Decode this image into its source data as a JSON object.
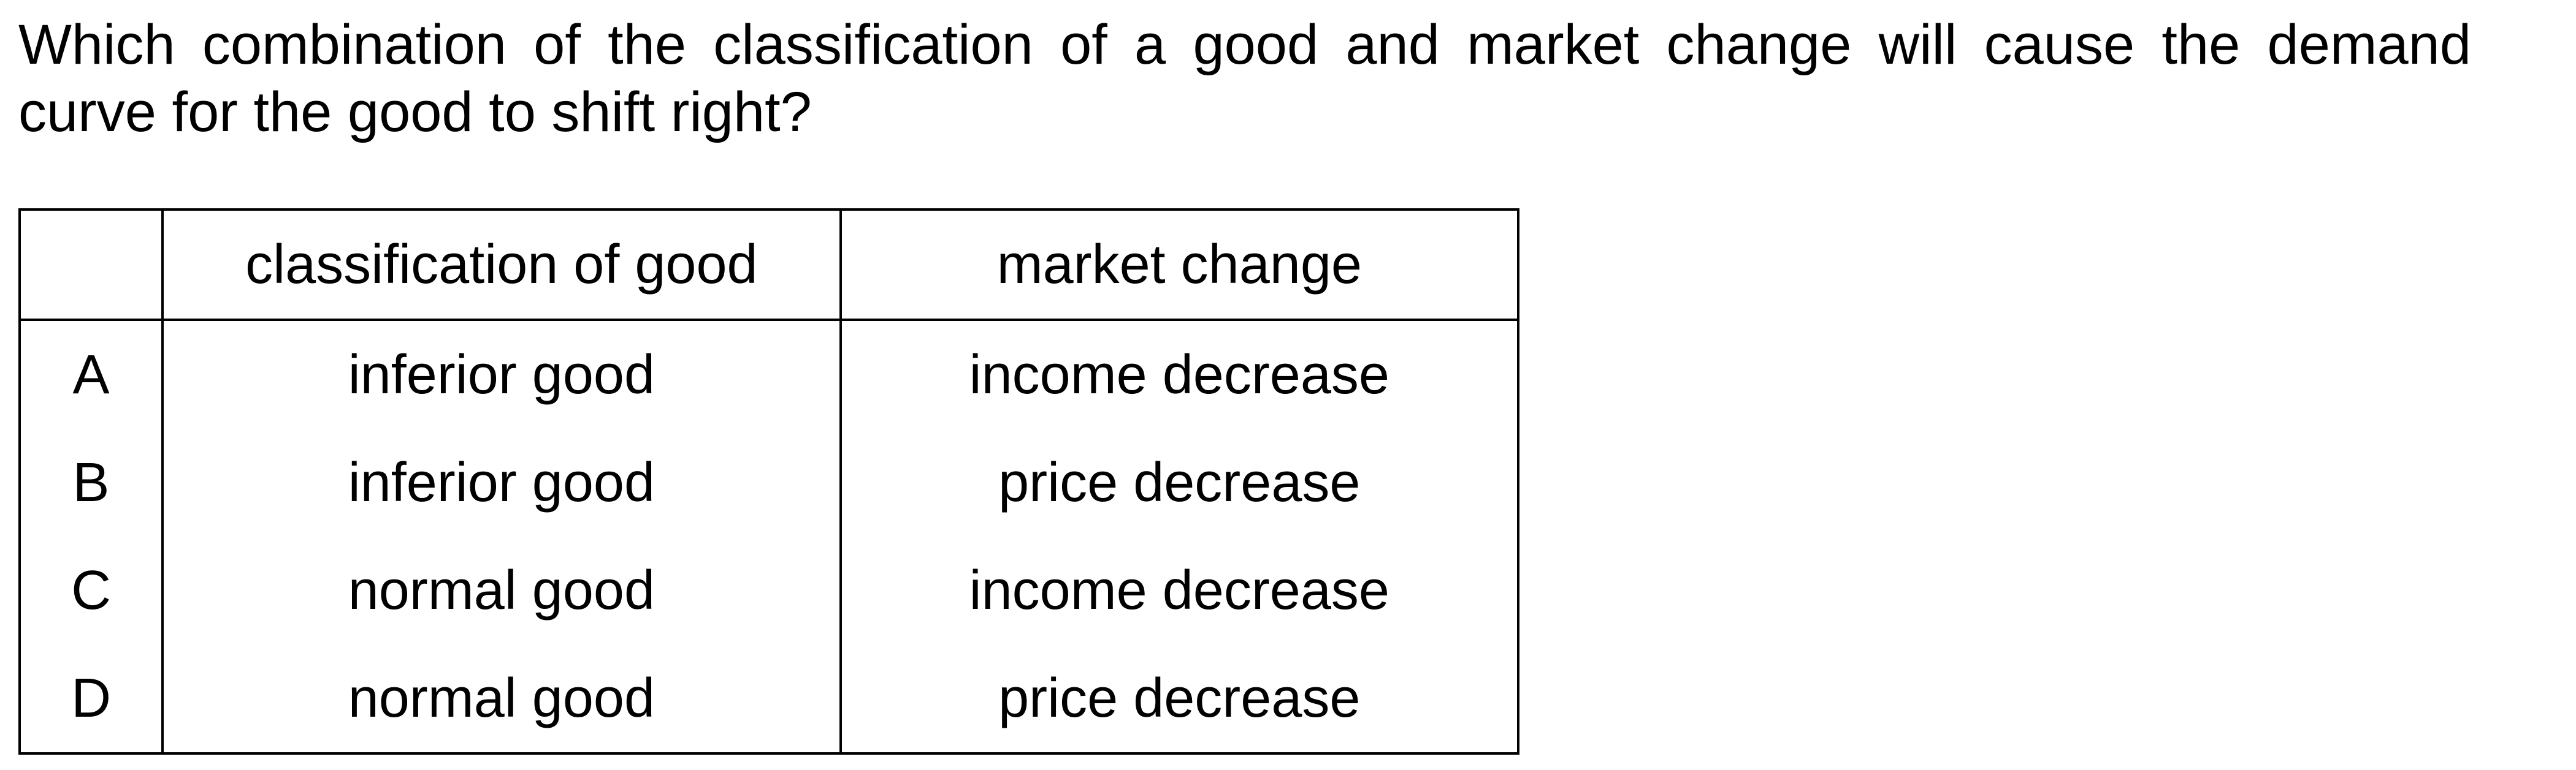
{
  "question": {
    "line1": "Which combination of the classification of a good and market change will cause the demand",
    "line2": "curve for the good to shift right?"
  },
  "table": {
    "headers": {
      "key": "",
      "classification": "classification of good",
      "change": "market change"
    },
    "rows": [
      {
        "key": "A",
        "classification": "inferior good",
        "change": "income decrease"
      },
      {
        "key": "B",
        "classification": "inferior good",
        "change": "price decrease"
      },
      {
        "key": "C",
        "classification": "normal good",
        "change": "income decrease"
      },
      {
        "key": "D",
        "classification": "normal good",
        "change": "price decrease"
      }
    ]
  }
}
